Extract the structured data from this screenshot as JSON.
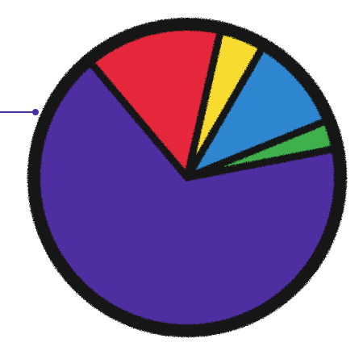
{
  "chart_data": {
    "type": "pie",
    "title": "",
    "start_angle_deg": -11,
    "slices": [
      {
        "name": "",
        "value": 67,
        "color": "#4F2FA2"
      },
      {
        "name": "",
        "value": 14.7,
        "color": "#E5263A"
      },
      {
        "name": "",
        "value": 4.8,
        "color": "#F7DB2F"
      },
      {
        "name": "",
        "value": 10.5,
        "color": "#2F86D0"
      },
      {
        "name": "",
        "value": 3.1,
        "color": "#3FB04E"
      }
    ],
    "outline_color": "#171717",
    "pointer_color": "#4A2FA0"
  }
}
